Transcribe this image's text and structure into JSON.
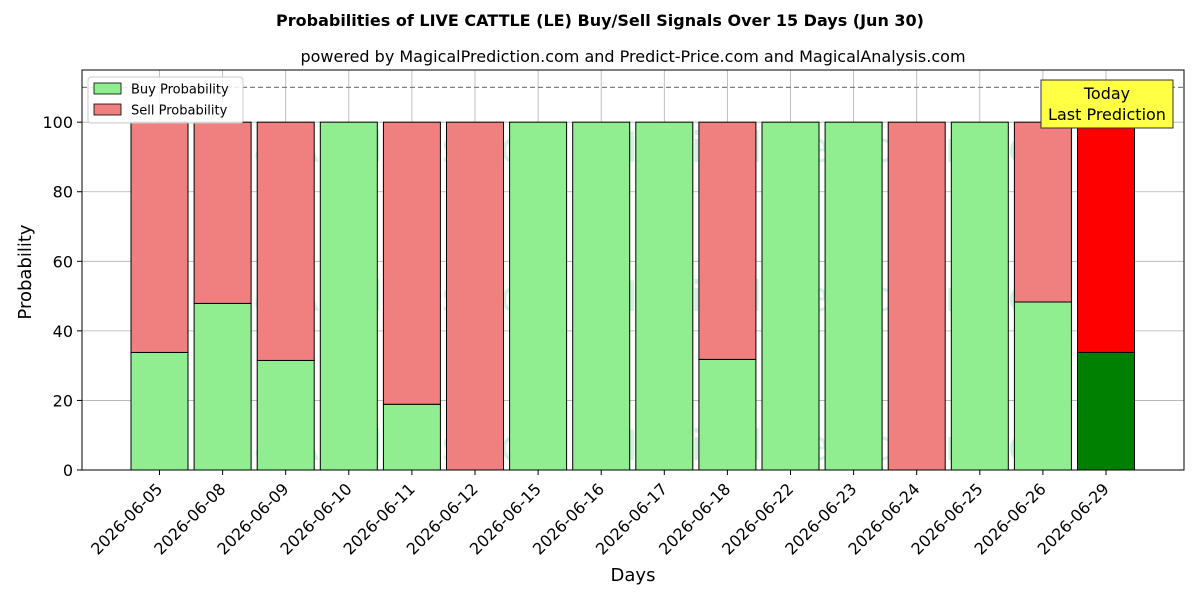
{
  "chart_data": {
    "type": "bar",
    "stacked": true,
    "title": "Probabilities of LIVE CATTLE (LE) Buy/Sell Signals Over 15 Days (Jun 30)",
    "subtitle": "powered by MagicalPrediction.com and Predict-Price.com and MagicalAnalysis.com",
    "xlabel": "Days",
    "ylabel": "Probability",
    "ylim": [
      0,
      115
    ],
    "yticks": [
      0,
      20,
      40,
      60,
      80,
      100
    ],
    "grid": true,
    "legend_position": "top-left",
    "reference_line": 110,
    "categories": [
      "2026-06-05",
      "2026-06-08",
      "2026-06-09",
      "2026-06-10",
      "2026-06-11",
      "2026-06-12",
      "2026-06-15",
      "2026-06-16",
      "2026-06-17",
      "2026-06-18",
      "2026-06-22",
      "2026-06-23",
      "2026-06-24",
      "2026-06-25",
      "2026-06-26",
      "2026-06-29"
    ],
    "series": [
      {
        "name": "Buy Probability",
        "color": "#90ee90",
        "values": [
          33.8,
          47.9,
          31.5,
          100,
          18.9,
          0,
          100,
          100,
          100,
          31.8,
          100,
          100,
          0,
          100,
          48.3,
          33.8
        ]
      },
      {
        "name": "Sell Probability",
        "color": "#f08080",
        "values": [
          66.2,
          52.1,
          68.5,
          0,
          81.1,
          100,
          0,
          0,
          0,
          68.2,
          0,
          0,
          100,
          0,
          51.7,
          66.2
        ]
      }
    ],
    "highlight": {
      "index": 15,
      "buy_color": "#008000",
      "sell_color": "#ff0000"
    },
    "annotation": {
      "line1": "Today",
      "line2": "Last Prediction",
      "background": "#ffff44"
    },
    "watermarks": [
      "MagicalAnalysis.com",
      "MagicalPrediction.com"
    ]
  }
}
